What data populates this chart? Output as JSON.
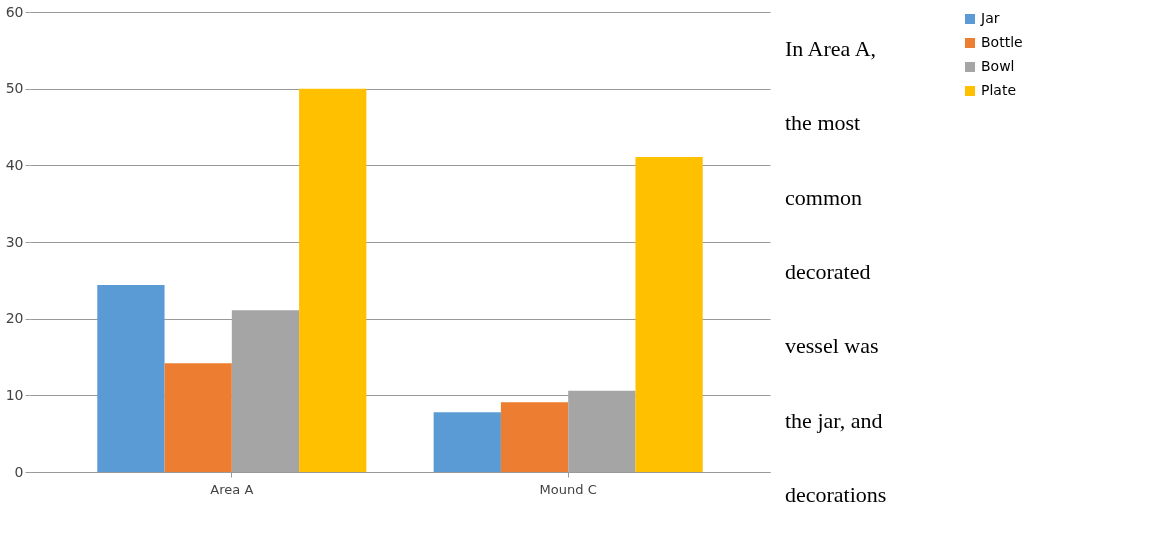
{
  "chart_data": {
    "type": "bar",
    "categories": [
      "Area A",
      "Mound C"
    ],
    "series": [
      {
        "name": "Jar",
        "color": "#5b9bd5",
        "values": [
          24.4,
          7.8
        ]
      },
      {
        "name": "Bottle",
        "color": "#ed7d31",
        "values": [
          14.2,
          9.1
        ]
      },
      {
        "name": "Bowl",
        "color": "#a5a5a5",
        "values": [
          21.1,
          10.6
        ]
      },
      {
        "name": "Plate",
        "color": "#ffc000",
        "values": [
          50,
          41.1
        ]
      }
    ],
    "ylim": [
      0,
      60
    ],
    "yticks": [
      0,
      10,
      20,
      30,
      40,
      50,
      60
    ],
    "grid": "y",
    "legend": "right",
    "annotations": [
      "In Area A, the most common decorated vessel was the jar, and decorations"
    ]
  }
}
